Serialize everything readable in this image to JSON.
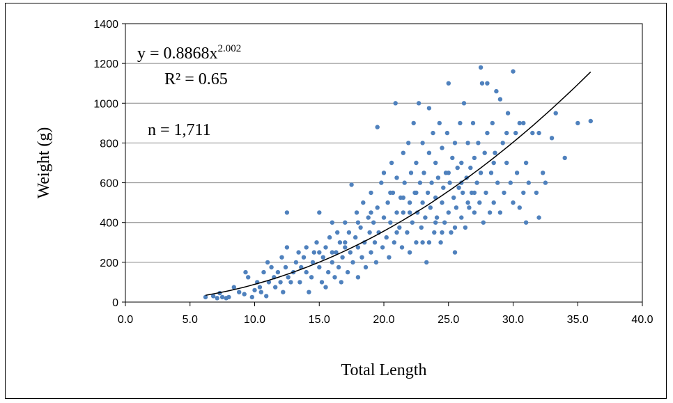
{
  "chart_data": {
    "type": "scatter",
    "xlabel": "Total Length",
    "ylabel": "Weight (g)",
    "xlim": [
      0,
      40
    ],
    "ylim": [
      0,
      1400
    ],
    "x_ticks": [
      "0.0",
      "5.0",
      "10.0",
      "15.0",
      "20.0",
      "25.0",
      "30.0",
      "35.0",
      "40.0"
    ],
    "y_ticks": [
      "0",
      "200",
      "400",
      "600",
      "800",
      "1000",
      "1200",
      "1400"
    ],
    "grid": "horizontal",
    "marker_color": "#4F81BD",
    "trendline": {
      "type": "power",
      "coefficient": 0.8868,
      "exponent": 2.002,
      "x_start": 6.2,
      "x_end": 36.0,
      "color": "#000000"
    },
    "annotations": {
      "equation_base": "y = 0.8868x",
      "equation_exponent": "2.002",
      "r_squared": "R² = 0.65",
      "n": "n = 1,711"
    },
    "points": [
      [
        6.2,
        25
      ],
      [
        6.8,
        30
      ],
      [
        7.1,
        20
      ],
      [
        7.3,
        45
      ],
      [
        7.5,
        25
      ],
      [
        7.8,
        20
      ],
      [
        8.0,
        25
      ],
      [
        8.4,
        75
      ],
      [
        8.8,
        50
      ],
      [
        9.2,
        40
      ],
      [
        9.3,
        150
      ],
      [
        9.5,
        125
      ],
      [
        9.8,
        25
      ],
      [
        10.0,
        60
      ],
      [
        10.2,
        100
      ],
      [
        10.4,
        75
      ],
      [
        10.5,
        50
      ],
      [
        10.7,
        150
      ],
      [
        10.9,
        30
      ],
      [
        11.0,
        200
      ],
      [
        11.1,
        100
      ],
      [
        11.3,
        175
      ],
      [
        11.5,
        125
      ],
      [
        11.6,
        75
      ],
      [
        11.8,
        150
      ],
      [
        12.0,
        100
      ],
      [
        12.1,
        225
      ],
      [
        12.2,
        50
      ],
      [
        12.4,
        175
      ],
      [
        12.5,
        450
      ],
      [
        12.5,
        275
      ],
      [
        12.6,
        125
      ],
      [
        12.8,
        100
      ],
      [
        13.0,
        150
      ],
      [
        13.2,
        200
      ],
      [
        13.4,
        250
      ],
      [
        13.5,
        100
      ],
      [
        13.6,
        175
      ],
      [
        13.8,
        225
      ],
      [
        14.0,
        150
      ],
      [
        14.0,
        275
      ],
      [
        14.2,
        50
      ],
      [
        14.4,
        125
      ],
      [
        14.5,
        200
      ],
      [
        14.6,
        250
      ],
      [
        14.8,
        300
      ],
      [
        15.0,
        175
      ],
      [
        15.0,
        450
      ],
      [
        15.2,
        100
      ],
      [
        15.3,
        225
      ],
      [
        15.5,
        275
      ],
      [
        15.5,
        75
      ],
      [
        15.7,
        150
      ],
      [
        15.8,
        325
      ],
      [
        16.0,
        200
      ],
      [
        16.0,
        400
      ],
      [
        16.2,
        125
      ],
      [
        16.3,
        250
      ],
      [
        16.4,
        350
      ],
      [
        16.5,
        175
      ],
      [
        16.6,
        300
      ],
      [
        16.7,
        100
      ],
      [
        16.8,
        225
      ],
      [
        17.0,
        275
      ],
      [
        17.0,
        400
      ],
      [
        17.2,
        150
      ],
      [
        17.3,
        350
      ],
      [
        17.4,
        250
      ],
      [
        17.5,
        590
      ],
      [
        17.6,
        200
      ],
      [
        17.8,
        325
      ],
      [
        17.9,
        450
      ],
      [
        18.0,
        125
      ],
      [
        18.0,
        275
      ],
      [
        18.2,
        375
      ],
      [
        18.3,
        225
      ],
      [
        18.4,
        500
      ],
      [
        18.5,
        300
      ],
      [
        18.6,
        175
      ],
      [
        18.8,
        425
      ],
      [
        18.9,
        350
      ],
      [
        19.0,
        250
      ],
      [
        19.0,
        550
      ],
      [
        19.2,
        400
      ],
      [
        19.3,
        300
      ],
      [
        19.4,
        200
      ],
      [
        19.5,
        475
      ],
      [
        19.5,
        880
      ],
      [
        19.6,
        350
      ],
      [
        19.8,
        600
      ],
      [
        19.9,
        275
      ],
      [
        20.0,
        425
      ],
      [
        20.0,
        650
      ],
      [
        20.2,
        325
      ],
      [
        20.3,
        500
      ],
      [
        20.4,
        225
      ],
      [
        20.5,
        400
      ],
      [
        20.6,
        700
      ],
      [
        20.7,
        550
      ],
      [
        20.8,
        300
      ],
      [
        20.9,
        1000
      ],
      [
        21.0,
        450
      ],
      [
        21.0,
        625
      ],
      [
        21.2,
        375
      ],
      [
        21.3,
        525
      ],
      [
        21.4,
        275
      ],
      [
        21.5,
        750
      ],
      [
        21.5,
        450
      ],
      [
        21.6,
        600
      ],
      [
        21.8,
        350
      ],
      [
        21.9,
        800
      ],
      [
        22.0,
        500
      ],
      [
        22.0,
        250
      ],
      [
        22.1,
        650
      ],
      [
        22.2,
        400
      ],
      [
        22.3,
        900
      ],
      [
        22.4,
        550
      ],
      [
        22.5,
        300
      ],
      [
        22.5,
        700
      ],
      [
        22.6,
        450
      ],
      [
        22.7,
        1000
      ],
      [
        22.8,
        600
      ],
      [
        22.9,
        375
      ],
      [
        23.0,
        500
      ],
      [
        23.0,
        800
      ],
      [
        23.1,
        650
      ],
      [
        23.2,
        425
      ],
      [
        23.3,
        200
      ],
      [
        23.4,
        550
      ],
      [
        23.5,
        750
      ],
      [
        23.5,
        975
      ],
      [
        23.6,
        475
      ],
      [
        23.7,
        600
      ],
      [
        23.8,
        850
      ],
      [
        23.9,
        350
      ],
      [
        24.0,
        525
      ],
      [
        24.0,
        700
      ],
      [
        24.1,
        425
      ],
      [
        24.2,
        625
      ],
      [
        24.3,
        900
      ],
      [
        24.4,
        300
      ],
      [
        24.5,
        500
      ],
      [
        24.5,
        775
      ],
      [
        24.6,
        575
      ],
      [
        24.7,
        400
      ],
      [
        24.8,
        650
      ],
      [
        24.9,
        850
      ],
      [
        25.0,
        450
      ],
      [
        25.0,
        1100
      ],
      [
        25.1,
        600
      ],
      [
        25.2,
        350
      ],
      [
        25.3,
        725
      ],
      [
        25.4,
        525
      ],
      [
        25.5,
        800
      ],
      [
        25.5,
        250
      ],
      [
        25.6,
        475
      ],
      [
        25.7,
        675
      ],
      [
        25.8,
        575
      ],
      [
        25.9,
        900
      ],
      [
        26.0,
        425
      ],
      [
        26.0,
        700
      ],
      [
        26.1,
        550
      ],
      [
        26.2,
        1000
      ],
      [
        26.3,
        375
      ],
      [
        26.4,
        625
      ],
      [
        26.5,
        800
      ],
      [
        26.6,
        475
      ],
      [
        26.7,
        675
      ],
      [
        26.8,
        550
      ],
      [
        26.9,
        900
      ],
      [
        27.0,
        450
      ],
      [
        27.0,
        725
      ],
      [
        27.2,
        600
      ],
      [
        27.3,
        800
      ],
      [
        27.4,
        500
      ],
      [
        27.5,
        1180
      ],
      [
        27.5,
        650
      ],
      [
        27.6,
        1100
      ],
      [
        27.7,
        400
      ],
      [
        27.8,
        750
      ],
      [
        27.9,
        550
      ],
      [
        28.0,
        1100
      ],
      [
        28.0,
        850
      ],
      [
        28.2,
        450
      ],
      [
        28.3,
        650
      ],
      [
        28.4,
        900
      ],
      [
        28.5,
        500
      ],
      [
        28.6,
        750
      ],
      [
        28.7,
        1060
      ],
      [
        28.8,
        600
      ],
      [
        29.0,
        1020
      ],
      [
        29.0,
        450
      ],
      [
        29.2,
        800
      ],
      [
        29.3,
        550
      ],
      [
        29.5,
        700
      ],
      [
        29.6,
        950
      ],
      [
        29.8,
        600
      ],
      [
        30.0,
        1160
      ],
      [
        30.0,
        500
      ],
      [
        30.2,
        850
      ],
      [
        30.3,
        650
      ],
      [
        30.5,
        900
      ],
      [
        30.5,
        475
      ],
      [
        30.8,
        550
      ],
      [
        31.0,
        700
      ],
      [
        31.0,
        400
      ],
      [
        31.2,
        600
      ],
      [
        31.5,
        850
      ],
      [
        31.8,
        550
      ],
      [
        32.0,
        425
      ],
      [
        32.0,
        850
      ],
      [
        32.3,
        650
      ],
      [
        32.5,
        600
      ],
      [
        33.0,
        825
      ],
      [
        33.3,
        950
      ],
      [
        34.0,
        725
      ],
      [
        35.0,
        900
      ],
      [
        36.0,
        910
      ],
      [
        21.0,
        350
      ],
      [
        22.0,
        450
      ],
      [
        23.0,
        300
      ],
      [
        24.0,
        400
      ],
      [
        25.0,
        650
      ],
      [
        26.0,
        600
      ],
      [
        27.0,
        550
      ],
      [
        24.5,
        350
      ],
      [
        22.5,
        550
      ],
      [
        20.5,
        550
      ],
      [
        19.0,
        450
      ],
      [
        18.0,
        400
      ],
      [
        17.0,
        300
      ],
      [
        16.0,
        250
      ],
      [
        15.0,
        250
      ],
      [
        23.5,
        300
      ],
      [
        21.5,
        525
      ],
      [
        26.5,
        500
      ],
      [
        28.5,
        700
      ],
      [
        29.5,
        850
      ],
      [
        30.8,
        900
      ],
      [
        25.5,
        375
      ]
    ]
  }
}
